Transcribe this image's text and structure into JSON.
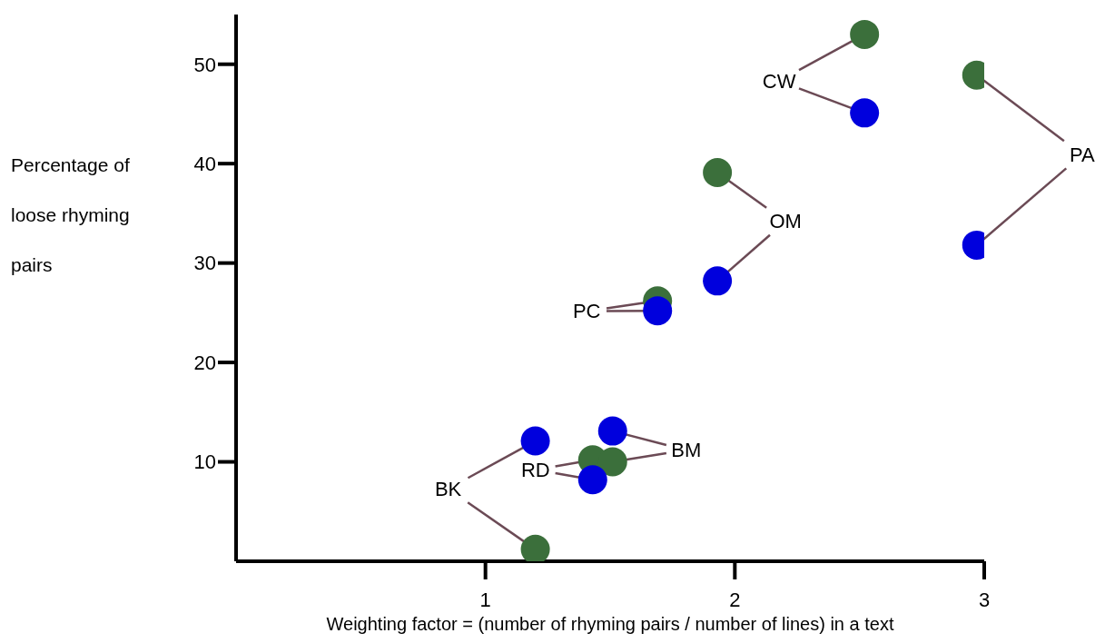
{
  "chart_data": {
    "type": "scatter",
    "xlabel": "Weighting factor = (number of rhyming pairs / number of lines) in a text",
    "ylabel": "Percentage of loose rhyming pairs",
    "x": [
      1.2,
      1.43,
      1.51,
      1.69,
      1.93,
      2.52,
      2.97
    ],
    "series": [
      {
        "color": "#3b6f3b",
        "values": [
          1.2,
          10.2,
          10.0,
          26.2,
          39.1,
          53.0,
          48.9
        ]
      },
      {
        "color": "#0000dd",
        "values": [
          12.1,
          8.2,
          13.1,
          25.2,
          28.2,
          45.1,
          31.8
        ]
      }
    ],
    "annotations": [
      {
        "text": "BK",
        "x": 1.2,
        "y": 1.2
      },
      {
        "text": "RD",
        "x": 1.43,
        "y": 10.2
      },
      {
        "text": "BM",
        "x": 1.51,
        "y": 10.0
      },
      {
        "text": "PC",
        "x": 1.69,
        "y": 26.2
      },
      {
        "text": "OM",
        "x": 1.93,
        "y": 39.1
      },
      {
        "text": "CW",
        "x": 2.52,
        "y": 53.0
      },
      {
        "text": "PA",
        "x": 2.97,
        "y": 48.9
      }
    ],
    "xlim": [
      0,
      3
    ],
    "xticks": [
      1,
      2,
      3
    ],
    "ylim": [
      0,
      55
    ],
    "yticks": [
      10,
      20,
      30,
      40,
      50
    ],
    "marker": "circle"
  }
}
